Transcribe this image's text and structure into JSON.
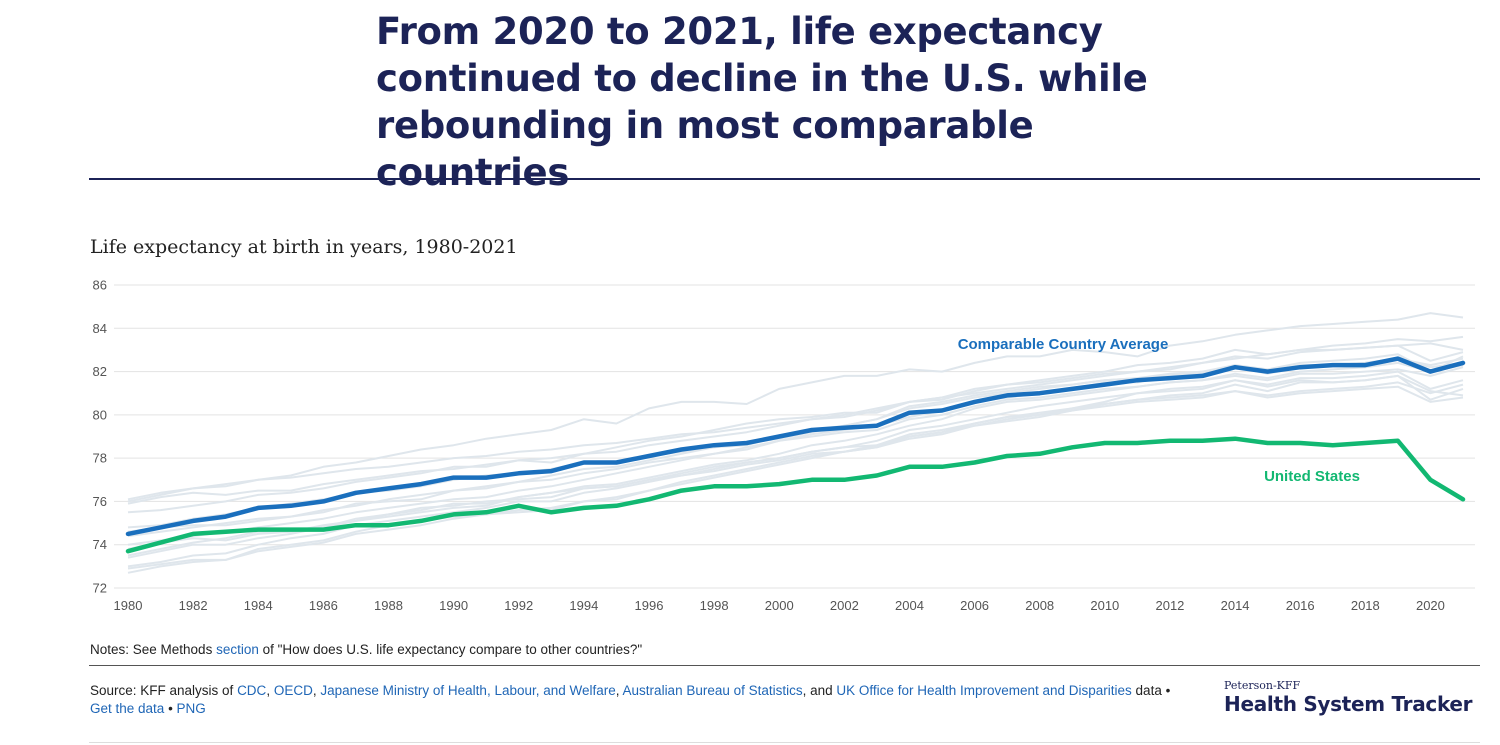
{
  "header": {
    "title": "From 2020 to 2021, life expectancy continued to decline in the U.S. while rebounding in most comparable countries",
    "subtitle": "Life expectancy at birth in years, 1980-2021"
  },
  "notes": {
    "prefix": "Notes: See Methods ",
    "link": "section",
    "suffix": " of \"How does U.S. life expectancy compare to other countries?\""
  },
  "source": {
    "prefix": "Source: KFF analysis of ",
    "links": [
      "CDC",
      "OECD",
      "Japanese Ministry of Health, Labour, and Welfare",
      "Australian Bureau of Statistics",
      "UK Office for Health Improvement and Disparities"
    ],
    "sep1": ", ",
    "and": ", and ",
    "data_word": " data • ",
    "get_data": "Get the data",
    "bullet": " • ",
    "png": "PNG"
  },
  "brand": {
    "small": "Peterson-KFF",
    "big": "Health System Tracker"
  },
  "chart_data": {
    "type": "line",
    "title": "Life expectancy at birth in years, 1980-2021",
    "ylim": [
      72,
      86
    ],
    "yticks": [
      72,
      74,
      76,
      78,
      80,
      82,
      84,
      86
    ],
    "xlim": [
      1980,
      2021
    ],
    "xticks": [
      1980,
      1982,
      1984,
      1986,
      1988,
      1990,
      1992,
      1994,
      1996,
      1998,
      2000,
      2002,
      2004,
      2006,
      2008,
      2010,
      2012,
      2014,
      2016,
      2018,
      2020
    ],
    "grid": true,
    "colors": {
      "average": "#1a6fbd",
      "us": "#12b872",
      "background": "#dfe6ec",
      "grid": "#e3e3e3",
      "axis_text": "#555555"
    },
    "x": [
      1980,
      1981,
      1982,
      1983,
      1984,
      1985,
      1986,
      1987,
      1988,
      1989,
      1990,
      1991,
      1992,
      1993,
      1994,
      1995,
      1996,
      1997,
      1998,
      1999,
      2000,
      2001,
      2002,
      2003,
      2004,
      2005,
      2006,
      2007,
      2008,
      2009,
      2010,
      2011,
      2012,
      2013,
      2014,
      2015,
      2016,
      2017,
      2018,
      2019,
      2020,
      2021
    ],
    "series": [
      {
        "name": "Comparable Country Average",
        "role": "average",
        "values": [
          74.5,
          74.8,
          75.1,
          75.3,
          75.7,
          75.8,
          76.0,
          76.4,
          76.6,
          76.8,
          77.1,
          77.1,
          77.3,
          77.4,
          77.8,
          77.8,
          78.1,
          78.4,
          78.6,
          78.7,
          79.0,
          79.3,
          79.4,
          79.5,
          80.1,
          80.2,
          80.6,
          80.9,
          81.0,
          81.2,
          81.4,
          81.6,
          81.7,
          81.8,
          82.2,
          82.0,
          82.2,
          82.3,
          82.3,
          82.6,
          82.0,
          82.4
        ]
      },
      {
        "name": "United States",
        "role": "us",
        "values": [
          73.7,
          74.1,
          74.5,
          74.6,
          74.7,
          74.7,
          74.7,
          74.9,
          74.9,
          75.1,
          75.4,
          75.5,
          75.8,
          75.5,
          75.7,
          75.8,
          76.1,
          76.5,
          76.7,
          76.7,
          76.8,
          77.0,
          77.0,
          77.2,
          77.6,
          77.6,
          77.8,
          78.1,
          78.2,
          78.5,
          78.7,
          78.7,
          78.8,
          78.8,
          78.9,
          78.7,
          78.7,
          78.6,
          78.7,
          78.8,
          77.0,
          76.1
        ]
      }
    ],
    "background_series": [
      [
        76.1,
        76.4,
        76.6,
        76.8,
        77.0,
        77.1,
        77.3,
        77.5,
        77.6,
        77.8,
        78.0,
        78.1,
        78.3,
        78.4,
        78.6,
        78.7,
        78.9,
        79.1,
        79.2,
        79.4,
        79.6,
        79.8,
        80.0,
        80.3,
        80.6,
        80.8,
        81.0,
        81.2,
        81.4,
        81.6,
        81.8,
        82.0,
        82.2,
        82.4,
        82.6,
        82.8,
        83.0,
        83.2,
        83.3,
        83.5,
        83.4,
        83.6
      ],
      [
        76.0,
        76.3,
        76.6,
        76.7,
        77.0,
        77.2,
        77.6,
        77.8,
        78.1,
        78.4,
        78.6,
        78.9,
        79.1,
        79.3,
        79.8,
        79.6,
        80.3,
        80.6,
        80.6,
        80.5,
        81.2,
        81.5,
        81.8,
        81.8,
        82.1,
        82.0,
        82.4,
        82.7,
        82.7,
        83.0,
        82.9,
        82.7,
        83.2,
        83.4,
        83.7,
        83.9,
        84.1,
        84.2,
        84.3,
        84.4,
        84.7,
        84.5
      ],
      [
        75.5,
        75.6,
        75.8,
        76.0,
        76.3,
        76.4,
        76.6,
        76.9,
        77.1,
        77.3,
        77.6,
        77.6,
        77.9,
        77.8,
        78.2,
        78.5,
        78.8,
        79.0,
        79.3,
        79.6,
        79.8,
        79.9,
        80.1,
        80.1,
        80.6,
        80.7,
        81.1,
        81.4,
        81.6,
        81.8,
        82.0,
        82.3,
        82.4,
        82.6,
        83.0,
        82.8,
        83.0,
        83.0,
        83.1,
        83.2,
        82.5,
        82.9
      ],
      [
        75.9,
        76.2,
        76.4,
        76.3,
        76.5,
        76.5,
        76.8,
        77.0,
        77.2,
        77.4,
        77.5,
        77.7,
        77.9,
        78.0,
        78.2,
        78.3,
        78.6,
        78.8,
        79.0,
        79.2,
        79.5,
        79.8,
        79.9,
        80.2,
        80.6,
        80.8,
        81.2,
        81.4,
        81.5,
        81.7,
        81.9,
        82.0,
        82.1,
        82.4,
        82.7,
        82.6,
        82.9,
        83.0,
        83.1,
        83.2,
        83.3,
        83.0
      ],
      [
        74.8,
        74.9,
        75.2,
        75.4,
        75.7,
        75.9,
        76.1,
        76.4,
        76.5,
        76.7,
        77.0,
        77.2,
        77.3,
        77.5,
        77.8,
        77.8,
        78.1,
        78.3,
        78.5,
        78.6,
        79.0,
        79.3,
        79.5,
        79.8,
        80.3,
        80.5,
        80.8,
        81.0,
        81.2,
        81.4,
        81.6,
        81.7,
        81.9,
        82.0,
        82.3,
        82.1,
        82.4,
        82.5,
        82.6,
        82.8,
        82.0,
        82.7
      ],
      [
        74.6,
        74.8,
        74.9,
        74.9,
        75.1,
        75.3,
        75.5,
        75.9,
        76.0,
        76.1,
        76.5,
        76.7,
        76.9,
        77.2,
        77.5,
        77.6,
        77.9,
        78.2,
        78.5,
        78.7,
        78.9,
        79.2,
        79.5,
        79.8,
        80.4,
        80.6,
        80.9,
        81.1,
        81.3,
        81.4,
        81.6,
        81.7,
        81.8,
        81.9,
        82.2,
        81.9,
        82.2,
        82.3,
        82.4,
        82.6,
        82.2,
        82.4
      ],
      [
        74.0,
        74.2,
        74.4,
        74.6,
        74.8,
        75.0,
        75.2,
        75.5,
        75.7,
        75.9,
        76.1,
        76.2,
        76.5,
        76.7,
        77.0,
        77.3,
        77.6,
        77.9,
        78.2,
        78.5,
        78.8,
        79.1,
        79.3,
        79.5,
        79.9,
        80.2,
        80.6,
        80.8,
        81.0,
        81.2,
        81.5,
        81.5,
        81.8,
        82.0,
        82.2,
        82.0,
        82.3,
        82.3,
        82.4,
        82.6,
        82.3,
        82.6
      ],
      [
        73.4,
        73.7,
        74.0,
        74.0,
        74.3,
        74.5,
        74.8,
        75.1,
        75.3,
        75.5,
        75.7,
        75.8,
        76.2,
        76.4,
        76.7,
        76.8,
        77.1,
        77.4,
        77.7,
        77.9,
        78.2,
        78.6,
        78.8,
        79.1,
        79.5,
        79.8,
        80.3,
        80.6,
        80.7,
        80.9,
        81.1,
        81.3,
        81.5,
        81.6,
        81.8,
        81.6,
        81.9,
        81.9,
        82.0,
        82.1,
        81.8,
        82.2
      ],
      [
        73.5,
        73.8,
        74.1,
        74.3,
        74.6,
        74.6,
        74.9,
        75.1,
        75.4,
        75.6,
        75.9,
        75.9,
        76.2,
        76.4,
        76.6,
        76.7,
        77.0,
        77.3,
        77.6,
        77.8,
        78.0,
        78.3,
        78.5,
        78.8,
        79.3,
        79.5,
        79.8,
        80.1,
        80.4,
        80.6,
        80.8,
        81.0,
        81.2,
        81.3,
        81.6,
        81.4,
        81.7,
        81.7,
        81.8,
        82.0,
        81.2,
        81.6
      ],
      [
        73.8,
        74.1,
        74.3,
        74.2,
        74.5,
        74.6,
        74.8,
        75.2,
        75.4,
        75.7,
        75.8,
        76.0,
        76.1,
        76.2,
        76.6,
        76.7,
        77.0,
        77.2,
        77.4,
        77.7,
        77.9,
        78.2,
        78.3,
        78.5,
        79.0,
        79.2,
        79.6,
        79.9,
        80.0,
        80.3,
        80.6,
        81.0,
        81.1,
        81.2,
        81.6,
        81.3,
        81.6,
        81.5,
        81.6,
        81.8,
        81.1,
        80.9
      ],
      [
        73.0,
        73.2,
        73.5,
        73.6,
        74.0,
        74.3,
        74.5,
        74.9,
        75.1,
        75.3,
        75.5,
        75.7,
        76.0,
        76.0,
        76.4,
        76.6,
        76.9,
        77.2,
        77.5,
        77.8,
        78.0,
        78.3,
        78.5,
        78.6,
        79.1,
        79.3,
        79.6,
        79.9,
        80.1,
        80.3,
        80.5,
        80.7,
        80.8,
        80.9,
        81.1,
        80.9,
        81.1,
        81.2,
        81.3,
        81.5,
        81.0,
        81.4
      ],
      [
        72.9,
        73.1,
        73.3,
        73.3,
        73.8,
        74.0,
        74.2,
        74.6,
        74.9,
        75.1,
        75.3,
        75.4,
        75.6,
        75.7,
        76.0,
        76.2,
        76.5,
        76.8,
        77.1,
        77.4,
        77.7,
        78.0,
        78.3,
        78.5,
        78.9,
        79.1,
        79.5,
        79.7,
        79.9,
        80.2,
        80.5,
        80.7,
        80.9,
        81.0,
        81.4,
        81.1,
        81.5,
        81.5,
        81.6,
        81.8,
        80.7,
        81.2
      ],
      [
        72.7,
        73.0,
        73.2,
        73.3,
        73.7,
        73.9,
        74.1,
        74.5,
        74.7,
        74.9,
        75.2,
        75.4,
        75.5,
        75.6,
        76.0,
        76.1,
        76.5,
        76.9,
        77.2,
        77.5,
        77.8,
        78.1,
        78.3,
        78.6,
        79.0,
        79.2,
        79.5,
        79.8,
        80.0,
        80.2,
        80.4,
        80.6,
        80.7,
        80.8,
        81.1,
        80.8,
        81.0,
        81.1,
        81.2,
        81.3,
        80.6,
        80.8
      ],
      [
        74.4,
        74.6,
        74.8,
        75.0,
        75.2,
        75.3,
        75.6,
        75.8,
        76.1,
        76.3,
        76.5,
        76.6,
        76.9,
        77.0,
        77.3,
        77.5,
        77.8,
        78.0,
        78.2,
        78.4,
        78.8,
        79.0,
        79.2,
        79.3,
        79.8,
        80.0,
        80.4,
        80.7,
        80.8,
        81.0,
        81.2,
        81.3,
        81.5,
        81.6,
        81.9,
        81.7,
        82.0,
        82.1,
        82.2,
        82.4,
        82.0,
        82.3
      ]
    ]
  }
}
